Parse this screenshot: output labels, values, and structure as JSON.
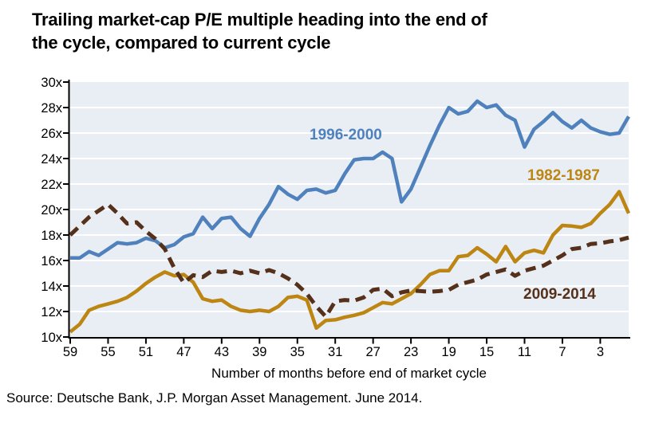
{
  "title": {
    "line1": "Trailing market-cap P/E multiple heading into the end of",
    "line2": "the cycle, compared to current cycle"
  },
  "source": "Source: Deutsche Bank, J.P. Morgan Asset Management. June 2014.",
  "chart_data": {
    "type": "line",
    "title": "Trailing market-cap P/E multiple heading into the end of the cycle, compared to current cycle",
    "xlabel": "Number of months before end of market cycle",
    "ylabel": "",
    "ylim": [
      10,
      30
    ],
    "grid": "horizontal white gridlines on shaded plot area",
    "plot_bg_color": "#e9eef4",
    "gridline_color": "#ffffff",
    "axis_color": "#000000",
    "xtick_labels": [
      "59",
      "55",
      "51",
      "47",
      "43",
      "39",
      "35",
      "31",
      "27",
      "23",
      "19",
      "15",
      "11",
      "7",
      "3"
    ],
    "ytick_labels": [
      "10x",
      "12x",
      "14x",
      "16x",
      "18x",
      "20x",
      "22x",
      "24x",
      "26x",
      "28x",
      "30x"
    ],
    "months": [
      59,
      58,
      57,
      56,
      55,
      54,
      53,
      52,
      51,
      50,
      49,
      48,
      47,
      46,
      45,
      44,
      43,
      42,
      41,
      40,
      39,
      38,
      37,
      36,
      35,
      34,
      33,
      32,
      31,
      30,
      29,
      28,
      27,
      26,
      25,
      24,
      23,
      22,
      21,
      20,
      19,
      18,
      17,
      16,
      15,
      14,
      13,
      12,
      11,
      10,
      9,
      8,
      7,
      6,
      5,
      4,
      3,
      2,
      1,
      0
    ],
    "series": [
      {
        "name": "1996-2000",
        "color": "#4f81bd",
        "line_style": "solid",
        "values": [
          16.2,
          16.2,
          16.7,
          16.4,
          16.9,
          17.4,
          17.3,
          17.4,
          17.75,
          17.55,
          17.0,
          17.25,
          17.85,
          18.1,
          19.4,
          18.5,
          19.3,
          19.4,
          18.5,
          17.9,
          19.3,
          20.4,
          21.8,
          21.2,
          20.8,
          21.5,
          21.6,
          21.3,
          21.5,
          22.8,
          23.9,
          24.0,
          24.0,
          24.5,
          24.0,
          20.6,
          21.6,
          23.3,
          25.0,
          26.6,
          28.0,
          27.5,
          27.7,
          28.5,
          28.0,
          28.2,
          27.4,
          27.0,
          24.9,
          26.3,
          26.9,
          27.6,
          26.9,
          26.4,
          27.0,
          26.4,
          26.1,
          25.9,
          26.0,
          27.3
        ]
      },
      {
        "name": "1982-1987",
        "color": "#bd8613",
        "line_style": "solid",
        "values": [
          10.4,
          11.0,
          12.1,
          12.4,
          12.6,
          12.8,
          13.1,
          13.6,
          14.2,
          14.7,
          15.1,
          14.8,
          14.9,
          14.3,
          13.0,
          12.8,
          12.9,
          12.4,
          12.1,
          12.0,
          12.1,
          12.0,
          12.4,
          13.1,
          13.2,
          12.9,
          10.7,
          11.3,
          11.35,
          11.55,
          11.7,
          11.9,
          12.3,
          12.7,
          12.6,
          13.0,
          13.4,
          14.1,
          14.9,
          15.2,
          15.2,
          16.3,
          16.4,
          17.0,
          16.5,
          15.9,
          17.1,
          15.9,
          16.6,
          16.8,
          16.6,
          18.0,
          18.75,
          18.7,
          18.6,
          18.9,
          19.7,
          20.4,
          21.4,
          19.7
        ]
      },
      {
        "name": "2009-2014",
        "color": "#55301a",
        "line_style": "dashed",
        "values": [
          18.0,
          18.7,
          19.4,
          19.9,
          20.4,
          19.7,
          18.9,
          19.0,
          18.3,
          17.7,
          16.9,
          15.4,
          14.25,
          14.85,
          14.7,
          15.2,
          15.1,
          15.2,
          15.0,
          15.2,
          15.0,
          15.25,
          15.0,
          14.6,
          14.1,
          13.4,
          12.4,
          11.6,
          12.8,
          12.9,
          12.85,
          13.1,
          13.7,
          13.8,
          13.2,
          13.5,
          13.65,
          13.6,
          13.55,
          13.6,
          13.7,
          14.1,
          14.3,
          14.5,
          14.9,
          15.1,
          15.3,
          14.8,
          15.2,
          15.4,
          15.6,
          16.0,
          16.4,
          16.9,
          17.0,
          17.3,
          17.35,
          17.5,
          17.6,
          17.8
        ]
      }
    ],
    "legend_position": "labels next to lines inside plot"
  }
}
